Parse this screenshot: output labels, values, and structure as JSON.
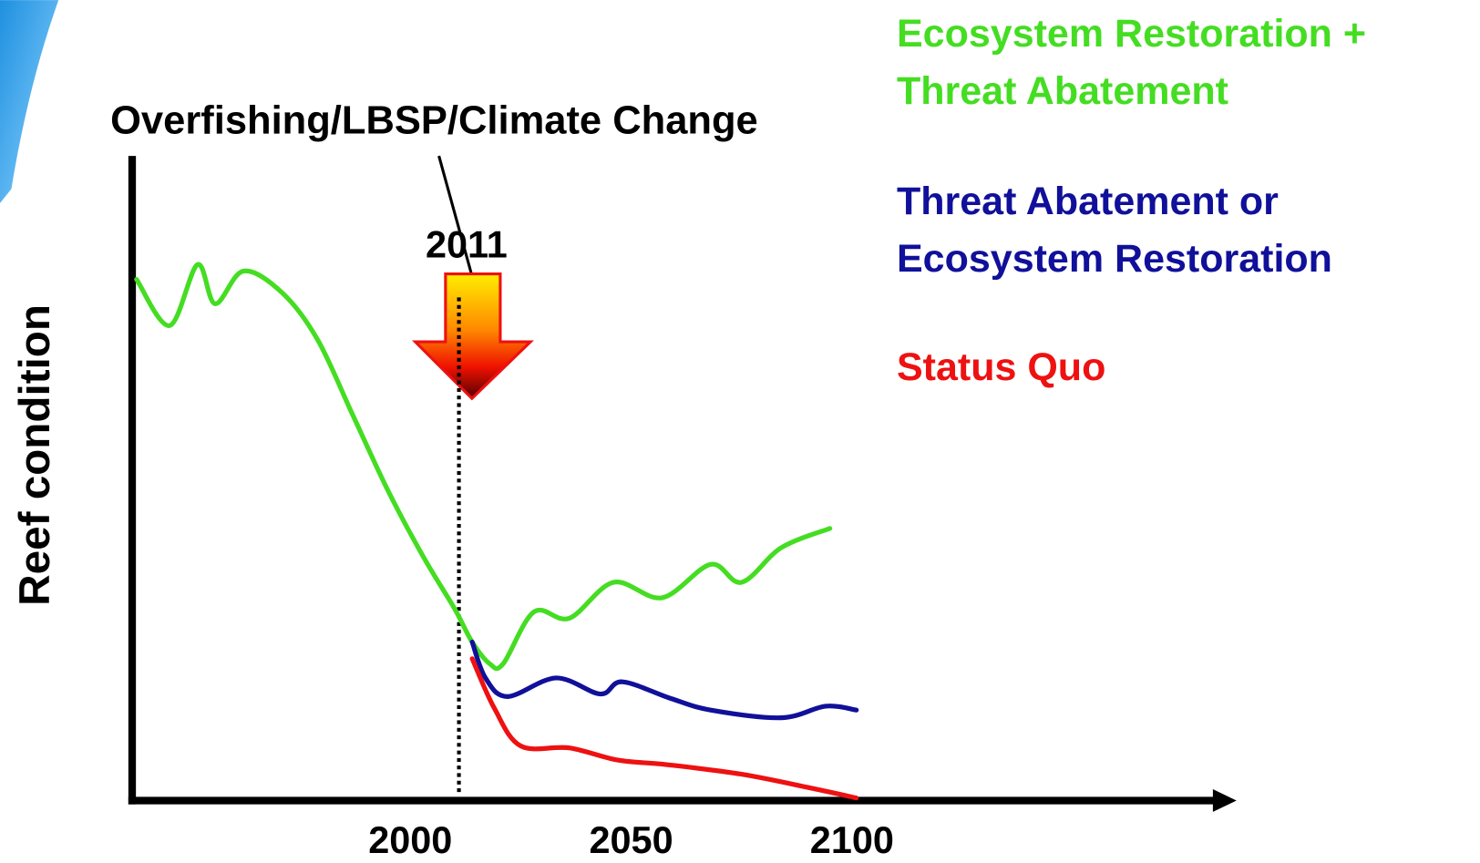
{
  "chart_data": {
    "type": "line",
    "annotation": "Overfishing/LBSP/Climate Change",
    "y_label": "Reef condition",
    "xlim": [
      1937,
      2186
    ],
    "ylim": [
      0,
      100
    ],
    "xticks": [
      2000,
      2050,
      2100
    ],
    "vline": 2011,
    "series": [
      {
        "name": "Ecosystem Restoration + Threat Abatement",
        "color": "#44dd22",
        "x": [
          1938,
          1945.5,
          1951.8,
          1955.8,
          1962.2,
          1971,
          1979,
          1987,
          1995,
          2003,
          2010,
          2014,
          2018,
          2021,
          2028,
          2036,
          2046,
          2057,
          2068,
          2075,
          2084,
          2095
        ],
        "values": [
          81.2,
          74,
          83.5,
          77.4,
          82.5,
          79.1,
          71.8,
          60,
          48.2,
          37.9,
          29.9,
          24.7,
          21.3,
          21.3,
          29.4,
          28.4,
          34,
          31.6,
          36.8,
          34,
          39.4,
          42.4
        ]
      },
      {
        "name": "Threat Abatement or Ecosystem Restoration",
        "color": "#10109a",
        "x": [
          2014,
          2017,
          2022,
          2033,
          2043,
          2048,
          2059,
          2068,
          2084,
          2094,
          2101
        ],
        "values": [
          24.7,
          19.1,
          16.2,
          19.1,
          16.6,
          18.5,
          15.9,
          14.1,
          12.9,
          14.7,
          14.1
        ]
      },
      {
        "name": "Status Quo",
        "color": "#ee1111",
        "x": [
          2014,
          2019,
          2025,
          2036,
          2047,
          2058,
          2075,
          2091,
          2101
        ],
        "values": [
          22.1,
          14.4,
          8.5,
          8.2,
          6.3,
          5.6,
          4.1,
          1.9,
          0.4
        ]
      }
    ]
  }
}
